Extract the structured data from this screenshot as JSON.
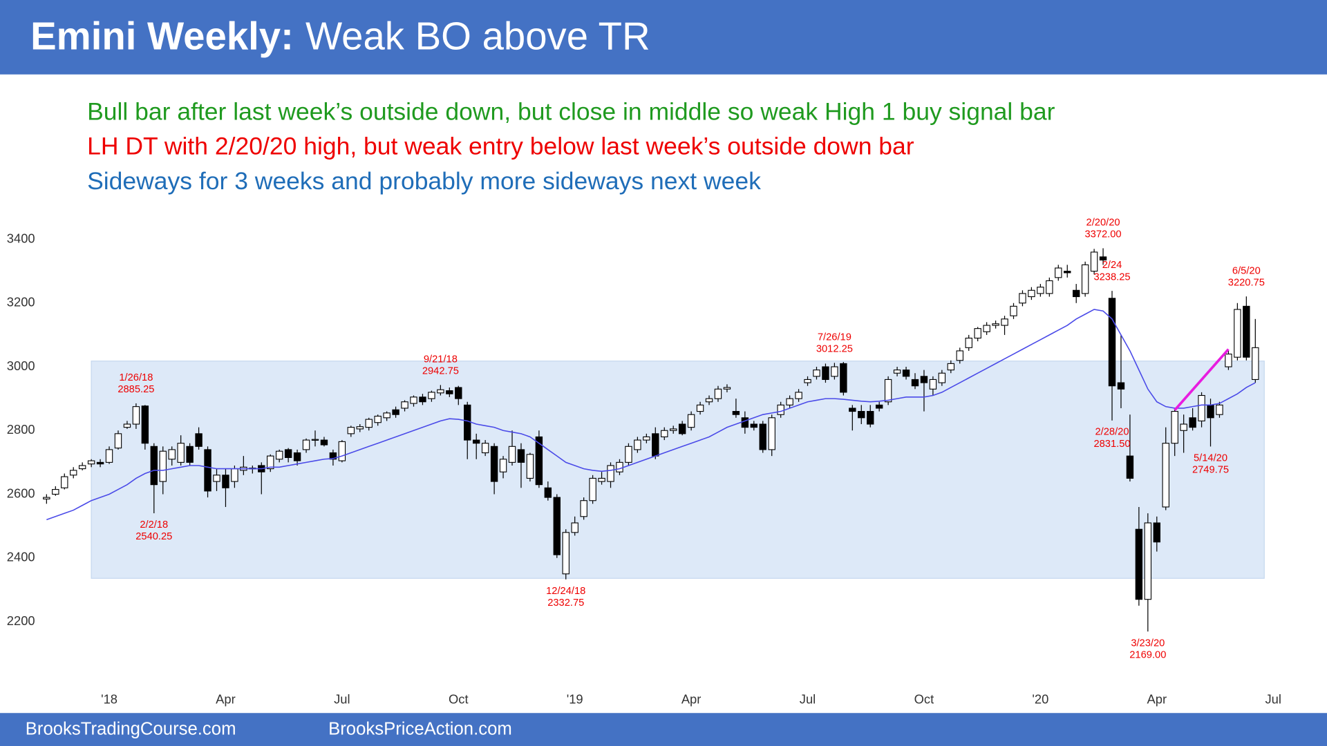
{
  "header": {
    "title_bold": "Emini Weekly:",
    "title_rest": "Weak BO above TR"
  },
  "notes": [
    {
      "text": "Bull bar after last week’s outside down, but close in middle so weak High 1 buy signal bar",
      "color": "#1f9a1f"
    },
    {
      "text": "LH DT with 2/20/20 high, but weak entry below last week’s outside down bar",
      "color": "#ee0000"
    },
    {
      "text": "Sideways for 3 weeks and probably more sideways next week",
      "color": "#1f6db8"
    }
  ],
  "chart_data": {
    "type": "candlestick",
    "categories": [
      null,
      null,
      null,
      null,
      null,
      null,
      null,
      "'18",
      null,
      null,
      null,
      null,
      null,
      null,
      null,
      null,
      null,
      null,
      null,
      null,
      "Apr",
      null,
      null,
      null,
      null,
      null,
      null,
      null,
      null,
      null,
      null,
      null,
      null,
      "Jul",
      null,
      null,
      null,
      null,
      null,
      null,
      null,
      null,
      null,
      null,
      null,
      null,
      "Oct",
      null,
      null,
      null,
      null,
      null,
      null,
      null,
      null,
      null,
      null,
      null,
      null,
      "'19",
      null,
      null,
      null,
      null,
      null,
      null,
      null,
      null,
      null,
      null,
      null,
      null,
      "Apr",
      null,
      null,
      null,
      null,
      null,
      null,
      null,
      null,
      null,
      null,
      null,
      null,
      "Jul",
      null,
      null,
      null,
      null,
      null,
      null,
      null,
      null,
      null,
      null,
      null,
      null,
      "Oct",
      null,
      null,
      null,
      null,
      null,
      null,
      null,
      null,
      null,
      null,
      null,
      null,
      "'20",
      null,
      null,
      null,
      null,
      null,
      null,
      null,
      null,
      null,
      null,
      null,
      null,
      "Apr",
      null,
      null,
      null,
      null,
      null,
      null,
      null,
      null,
      null,
      null,
      null,
      null,
      "Jul"
    ],
    "open": [
      2585,
      2600,
      2620,
      2660,
      2680,
      2695,
      2700,
      2700,
      2745,
      2810,
      2820,
      2877,
      2750,
      2640,
      2710,
      2700,
      2750,
      2790,
      2740,
      2640,
      2660,
      2640,
      2675,
      2680,
      2690,
      2680,
      2710,
      2740,
      2730,
      2740,
      2770,
      2770,
      2730,
      2705,
      2790,
      2805,
      2810,
      2825,
      2840,
      2865,
      2870,
      2885,
      2905,
      2900,
      2918,
      2925,
      2935,
      2880,
      2770,
      2730,
      2750,
      2670,
      2700,
      2740,
      2650,
      2780,
      2620,
      2590,
      2350,
      2480,
      2530,
      2580,
      2640,
      2640,
      2670,
      2700,
      2740,
      2770,
      2790,
      2780,
      2800,
      2820,
      2810,
      2860,
      2890,
      2900,
      2930,
      2860,
      2840,
      2820,
      2820,
      2740,
      2850,
      2880,
      2900,
      2950,
      2970,
      3000,
      2970,
      3010,
      2870,
      2860,
      2860,
      2880,
      2890,
      2980,
      2990,
      2960,
      2970,
      2930,
      2950,
      2990,
      3020,
      3060,
      3090,
      3110,
      3130,
      3130,
      3160,
      3200,
      3220,
      3230,
      3230,
      3280,
      3300,
      3240,
      3230,
      3300,
      3345,
      3215,
      2950,
      2720,
      2490,
      2270,
      2510,
      2560,
      2760,
      2800,
      2840,
      2830,
      2880,
      2850,
      3000,
      3030,
      3190,
      2960,
      null,
      null
    ],
    "high": [
      2600,
      2625,
      2665,
      2685,
      2700,
      2710,
      2710,
      2750,
      2800,
      2830,
      2885.25,
      2880,
      2760,
      2750,
      2750,
      2785,
      2760,
      2810,
      2750,
      2680,
      2680,
      2690,
      2720,
      2690,
      2700,
      2725,
      2740,
      2745,
      2740,
      2775,
      2800,
      2780,
      2740,
      2770,
      2815,
      2820,
      2840,
      2850,
      2860,
      2875,
      2895,
      2910,
      2915,
      2925,
      2942.75,
      2935,
      2940,
      2890,
      2790,
      2770,
      2760,
      2720,
      2800,
      2760,
      2730,
      2800,
      2640,
      2600,
      2490,
      2530,
      2590,
      2660,
      2670,
      2700,
      2710,
      2760,
      2780,
      2790,
      2810,
      2810,
      2815,
      2830,
      2860,
      2890,
      2910,
      2940,
      2945,
      2900,
      2860,
      2830,
      2830,
      2850,
      2890,
      2910,
      2930,
      2970,
      3000,
      3010,
      3012.25,
      3015,
      2880,
      2880,
      2880,
      2890,
      2970,
      3000,
      3000,
      2980,
      2990,
      2970,
      2990,
      3020,
      3060,
      3100,
      3125,
      3140,
      3145,
      3160,
      3200,
      3240,
      3250,
      3260,
      3280,
      3320,
      3320,
      3260,
      3330,
      3370,
      3372.0,
      3238.25,
      3100,
      2850,
      2560,
      2540,
      2530,
      2810,
      2870,
      2850,
      2870,
      2920,
      2900,
      2890,
      3050,
      3200,
      3220.75,
      3150,
      null,
      null
    ],
    "low": [
      2570,
      2595,
      2615,
      2650,
      2675,
      2685,
      2685,
      2695,
      2740,
      2805,
      2805,
      2740,
      2540.25,
      2600,
      2690,
      2690,
      2690,
      2740,
      2590,
      2610,
      2560,
      2620,
      2660,
      2665,
      2600,
      2670,
      2700,
      2700,
      2690,
      2730,
      2750,
      2750,
      2690,
      2700,
      2780,
      2795,
      2800,
      2815,
      2830,
      2840,
      2860,
      2875,
      2880,
      2890,
      2910,
      2905,
      2880,
      2710,
      2710,
      2720,
      2600,
      2650,
      2690,
      2620,
      2640,
      2620,
      2580,
      2400,
      2332.75,
      2470,
      2520,
      2570,
      2630,
      2620,
      2660,
      2690,
      2730,
      2760,
      2710,
      2770,
      2790,
      2785,
      2800,
      2850,
      2880,
      2890,
      2920,
      2840,
      2790,
      2800,
      2730,
      2720,
      2840,
      2870,
      2890,
      2940,
      2960,
      2950,
      2960,
      2910,
      2800,
      2820,
      2810,
      2860,
      2880,
      2970,
      2960,
      2930,
      2860,
      2910,
      2940,
      2980,
      3010,
      3050,
      3080,
      3100,
      3120,
      3100,
      3150,
      3190,
      3210,
      3220,
      3220,
      3270,
      3280,
      3200,
      3220,
      3290,
      3320,
      2831.5,
      2870,
      2640,
      2250,
      2169.0,
      2420,
      2550,
      2720,
      2730,
      2800,
      2810,
      2749.75,
      2840,
      2990,
      3020,
      3020,
      2950,
      null,
      null
    ],
    "close": [
      2590,
      2615,
      2655,
      2675,
      2690,
      2705,
      2695,
      2740,
      2790,
      2820,
      2875,
      2760,
      2630,
      2735,
      2740,
      2760,
      2700,
      2750,
      2610,
      2660,
      2620,
      2680,
      2685,
      2682,
      2670,
      2720,
      2735,
      2715,
      2705,
      2770,
      2772,
      2755,
      2710,
      2765,
      2810,
      2812,
      2835,
      2845,
      2855,
      2850,
      2890,
      2905,
      2890,
      2920,
      2928,
      2915,
      2900,
      2770,
      2760,
      2760,
      2640,
      2710,
      2750,
      2700,
      2725,
      2630,
      2590,
      2410,
      2480,
      2510,
      2580,
      2650,
      2650,
      2690,
      2700,
      2750,
      2770,
      2780,
      2720,
      2800,
      2805,
      2790,
      2850,
      2880,
      2900,
      2930,
      2935,
      2850,
      2810,
      2810,
      2740,
      2840,
      2880,
      2900,
      2920,
      2960,
      2990,
      2960,
      3000,
      2920,
      2860,
      2840,
      2820,
      2870,
      2960,
      2990,
      2970,
      2940,
      2950,
      2960,
      2980,
      3010,
      3050,
      3090,
      3120,
      3130,
      3135,
      3150,
      3190,
      3230,
      3240,
      3250,
      3270,
      3310,
      3295,
      3220,
      3320,
      3360,
      3335,
      2940,
      2930,
      2650,
      2270,
      2510,
      2450,
      2760,
      2860,
      2820,
      2810,
      2910,
      2840,
      2880,
      3040,
      3180,
      3030,
      3060,
      null,
      null
    ],
    "up_color": "#ffffff",
    "down_color": "#000000",
    "outline_color": "#000000",
    "moving_average": {
      "color": "#4a4ae8",
      "values": [
        2520,
        2530,
        2540,
        2550,
        2565,
        2580,
        2590,
        2600,
        2615,
        2630,
        2650,
        2665,
        2675,
        2675,
        2680,
        2685,
        2690,
        2690,
        2685,
        2680,
        2680,
        2680,
        2680,
        2680,
        2680,
        2685,
        2685,
        2690,
        2695,
        2700,
        2705,
        2710,
        2712,
        2720,
        2730,
        2740,
        2750,
        2760,
        2770,
        2780,
        2790,
        2800,
        2810,
        2820,
        2830,
        2837,
        2835,
        2830,
        2820,
        2815,
        2810,
        2800,
        2795,
        2790,
        2780,
        2760,
        2740,
        2720,
        2700,
        2690,
        2680,
        2675,
        2672,
        2675,
        2680,
        2690,
        2700,
        2710,
        2720,
        2730,
        2740,
        2750,
        2760,
        2770,
        2780,
        2795,
        2810,
        2820,
        2830,
        2840,
        2850,
        2855,
        2860,
        2870,
        2880,
        2890,
        2895,
        2900,
        2900,
        2898,
        2895,
        2892,
        2890,
        2892,
        2895,
        2900,
        2905,
        2905,
        2905,
        2910,
        2920,
        2935,
        2950,
        2965,
        2980,
        2995,
        3010,
        3025,
        3040,
        3055,
        3070,
        3085,
        3100,
        3115,
        3130,
        3150,
        3165,
        3180,
        3175,
        3150,
        3100,
        3050,
        2990,
        2930,
        2890,
        2875,
        2870,
        2870,
        2875,
        2880,
        2880,
        2885,
        2900,
        2915,
        2935,
        2950,
        null,
        null
      ]
    },
    "range_box": {
      "low": 2336,
      "high": 3018,
      "x": [
        5,
        136
      ],
      "color": "#dde9f8",
      "border": "#c5d8ef"
    },
    "trendline": {
      "x": [
        126,
        132
      ],
      "y": [
        2864,
        3055
      ],
      "color": "#e81ce0"
    },
    "annotations": [
      {
        "date": "1/26/18",
        "value": 2885.25
      },
      {
        "date": "2/2/18",
        "value": 2540.25
      },
      {
        "date": "9/21/18",
        "value": 2942.75
      },
      {
        "date": "12/24/18",
        "value": 2332.75
      },
      {
        "date": "7/26/19",
        "value": 3012.25
      },
      {
        "date": "2/20/20",
        "value": 3372,
        "value_label": "3372.00"
      },
      {
        "date": "2/24",
        "value": 3238.25
      },
      {
        "date": "2/28/20",
        "value": 2831.5,
        "value_label": "2831.50"
      },
      {
        "date": "3/23/20",
        "value": 2169,
        "value_label": "2169.00"
      },
      {
        "date": "5/14/20",
        "value": 2749.75
      },
      {
        "date": "6/5/20",
        "value": 3220.75
      }
    ],
    "annotation_color": "#ee0000",
    "ylim": [
      2050,
      3500
    ],
    "yticks": [
      2200,
      2400,
      2600,
      2800,
      3000,
      3200,
      3400
    ],
    "grid": false
  },
  "footer": {
    "links": [
      "BrooksTradingCourse.com",
      "BrooksPriceAction.com"
    ]
  }
}
